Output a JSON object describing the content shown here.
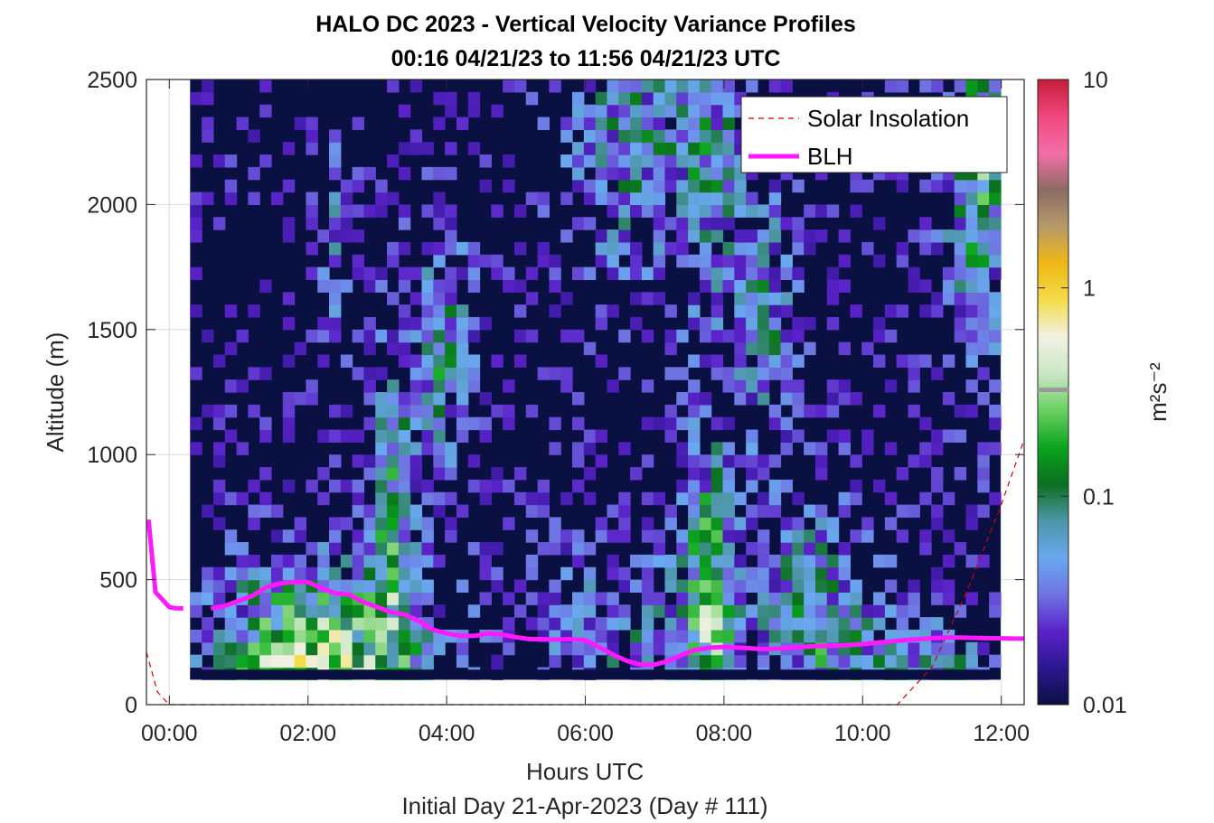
{
  "chart_data": {
    "type": "heatmap",
    "title": "HALO DC 2023 - Vertical Velocity Variance Profiles",
    "subtitle": "00:16 04/21/23 to 11:56 04/21/23  UTC",
    "xlabel": "Hours UTC",
    "xlabel2": "Initial Day 21-Apr-2023 (Day # 111)",
    "ylabel": "Altitude (m)",
    "xlim": [
      -0.33,
      12.33
    ],
    "ylim": [
      0,
      2500
    ],
    "x_ticks": [
      0,
      2,
      4,
      6,
      8,
      10,
      12
    ],
    "x_tick_labels": [
      "00:00",
      "02:00",
      "04:00",
      "06:00",
      "08:00",
      "10:00",
      "12:00"
    ],
    "y_ticks": [
      0,
      500,
      1000,
      1500,
      2000,
      2500
    ],
    "y_tick_labels": [
      "0",
      "500",
      "1000",
      "1500",
      "2000",
      "2500"
    ],
    "grid": true,
    "colorbar": {
      "label": "m²s⁻²",
      "scale": "log",
      "range": [
        0.01,
        10
      ],
      "ticks": [
        0.01,
        0.1,
        1,
        10
      ],
      "tick_labels": [
        "0.01",
        "0.1",
        "1",
        "10"
      ],
      "colors": [
        "#0b1042",
        "#2b1790",
        "#5a22c8",
        "#6f74e2",
        "#6aa8ef",
        "#4d96a8",
        "#0a6f1f",
        "#0aa51e",
        "#6ccf63",
        "#c9e7c3",
        "#f2f1e4",
        "#f2dc4a",
        "#f0b714",
        "#b69a6a",
        "#8a6b64",
        "#f46ea8",
        "#f0477e",
        "#c61c3a"
      ]
    },
    "heatmap": {
      "x_start": 0.3,
      "dx": 0.167,
      "y_start": 100,
      "dy": 50,
      "nx": 70,
      "ny": 48
    },
    "series": [
      {
        "name": "Solar Insolation",
        "x": [
          -0.33,
          -0.17,
          0,
          1,
          2,
          3,
          4,
          5,
          6,
          7,
          8,
          9,
          10,
          10.5,
          11,
          11.5,
          12,
          12.33
        ],
        "y": [
          210,
          50,
          0,
          0,
          0,
          0,
          0,
          0,
          0,
          0,
          0,
          0,
          0,
          0,
          150,
          450,
          800,
          1060
        ]
      },
      {
        "name": "BLH",
        "x": [
          -0.3,
          -0.2,
          -0.1,
          0.0,
          0.1,
          0.2,
          0.6,
          0.8,
          1.0,
          1.2,
          1.4,
          1.6,
          1.8,
          2.0,
          2.2,
          2.4,
          2.6,
          2.8,
          3.0,
          3.2,
          3.4,
          3.6,
          3.8,
          4.0,
          4.2,
          4.4,
          4.6,
          4.8,
          5.0,
          5.2,
          5.4,
          5.6,
          5.8,
          6.0,
          6.2,
          6.4,
          6.6,
          6.8,
          7.0,
          7.2,
          7.4,
          7.6,
          7.8,
          8.0,
          8.2,
          8.4,
          8.6,
          8.8,
          9.0,
          9.2,
          9.4,
          9.6,
          9.8,
          10.0,
          10.2,
          10.4,
          10.6,
          10.8,
          11.0,
          11.2,
          11.4,
          11.6,
          11.8,
          12.0,
          12.2,
          12.33
        ],
        "y": [
          740,
          450,
          420,
          390,
          385,
          385,
          385,
          395,
          415,
          435,
          470,
          485,
          490,
          490,
          465,
          445,
          440,
          410,
          390,
          370,
          360,
          335,
          300,
          285,
          275,
          275,
          285,
          280,
          270,
          262,
          262,
          260,
          262,
          258,
          230,
          200,
          175,
          160,
          160,
          175,
          200,
          220,
          228,
          230,
          228,
          225,
          222,
          225,
          228,
          232,
          235,
          236,
          238,
          242,
          248,
          252,
          258,
          262,
          266,
          268,
          268,
          267,
          266,
          265,
          264,
          264
        ]
      }
    ],
    "legend": {
      "placement": "top-right",
      "entries": [
        "Solar Insolation",
        "BLH"
      ]
    },
    "colors": {
      "blh": "#ff1aff",
      "solar": "#cc0000",
      "background": "#0b1042"
    }
  }
}
